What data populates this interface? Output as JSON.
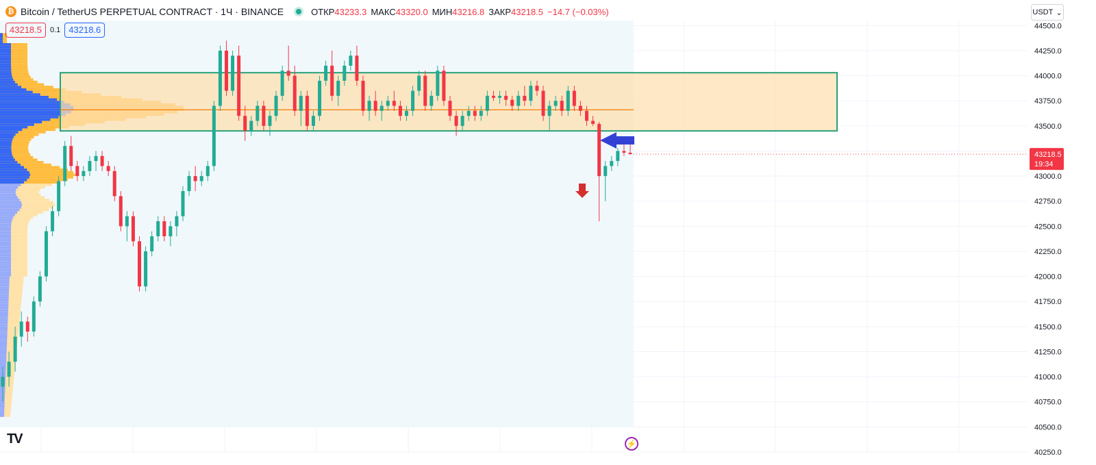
{
  "header": {
    "coin_icon": "bitcoin-icon",
    "title": "Bitcoin / TetherUS PERPETUAL CONTRACT · 1Ч · BINANCE",
    "ohlc": [
      {
        "key": "ОТКР",
        "value": "43233.3"
      },
      {
        "key": "МАКС",
        "value": "43320.0"
      },
      {
        "key": "МИН",
        "value": "43216.8"
      },
      {
        "key": "ЗАКР",
        "value": "43218.5"
      }
    ],
    "change": "−14.7 (−0.03%)"
  },
  "prices": {
    "sell": "43218.5",
    "spread": "0.1",
    "buy": "43218.6"
  },
  "currency": {
    "label": "USDT",
    "icon": "chevron-down-icon"
  },
  "price_axis": {
    "ticks": [
      "44500.0",
      "44250.0",
      "44000.0",
      "43750.0",
      "43500.0",
      "43250.0",
      "43000.0",
      "42750.0",
      "42500.0",
      "42250.0",
      "42000.0",
      "41750.0",
      "41500.0",
      "41250.0",
      "41000.0",
      "40750.0",
      "40500.0",
      "40250.0"
    ],
    "last_price": "43218.5",
    "countdown": "19:34"
  },
  "colors": {
    "up": "#22ab94",
    "down": "#f23645",
    "zone_fill": "#ffe0b2",
    "zone_border": "#26a17b",
    "poc": "#f57c00",
    "profile_blue": "#2962ff",
    "profile_orange": "#ffb833"
  },
  "logo": "TV",
  "bolt_icon": "lightning-icon",
  "chart_data": {
    "type": "candlestick",
    "y_range": [
      40250,
      44550
    ],
    "resistance_zone": [
      43450,
      44030
    ],
    "poc_level": 43660,
    "last_price": 43218.5,
    "candles": [
      [
        40900,
        41100,
        40750,
        41000
      ],
      [
        41000,
        41250,
        40900,
        41150
      ],
      [
        41150,
        41500,
        41050,
        41400
      ],
      [
        41400,
        41650,
        41300,
        41550
      ],
      [
        41550,
        41600,
        41350,
        41450
      ],
      [
        41450,
        41800,
        41400,
        41750
      ],
      [
        41750,
        42050,
        41700,
        42000
      ],
      [
        42000,
        42500,
        41950,
        42450
      ],
      [
        42450,
        42700,
        42400,
        42650
      ],
      [
        42650,
        43000,
        42600,
        42950
      ],
      [
        42950,
        43350,
        42900,
        43300
      ],
      [
        43300,
        43400,
        43050,
        43100
      ],
      [
        43100,
        43150,
        42950,
        43000
      ],
      [
        43000,
        43100,
        42950,
        43050
      ],
      [
        43050,
        43200,
        43000,
        43150
      ],
      [
        43150,
        43250,
        43050,
        43200
      ],
      [
        43200,
        43250,
        43050,
        43100
      ],
      [
        43100,
        43150,
        43000,
        43050
      ],
      [
        43050,
        43100,
        42750,
        42800
      ],
      [
        42800,
        42850,
        42450,
        42500
      ],
      [
        42500,
        42650,
        42350,
        42600
      ],
      [
        42600,
        42650,
        42300,
        42350
      ],
      [
        42350,
        42400,
        41850,
        41900
      ],
      [
        41900,
        42300,
        41850,
        42250
      ],
      [
        42250,
        42450,
        42200,
        42400
      ],
      [
        42400,
        42600,
        42350,
        42550
      ],
      [
        42550,
        42600,
        42350,
        42400
      ],
      [
        42400,
        42550,
        42300,
        42500
      ],
      [
        42500,
        42650,
        42400,
        42600
      ],
      [
        42600,
        42900,
        42550,
        42850
      ],
      [
        42850,
        43050,
        42800,
        43000
      ],
      [
        43000,
        43100,
        42850,
        42950
      ],
      [
        42950,
        43050,
        42900,
        43000
      ],
      [
        43000,
        43150,
        42950,
        43100
      ],
      [
        43100,
        43750,
        43050,
        43700
      ],
      [
        43700,
        44300,
        43650,
        44250
      ],
      [
        44250,
        44350,
        43800,
        43850
      ],
      [
        43850,
        44250,
        43800,
        44200
      ],
      [
        44200,
        44300,
        43550,
        43600
      ],
      [
        43600,
        43700,
        43350,
        43450
      ],
      [
        43450,
        43600,
        43400,
        43550
      ],
      [
        43550,
        43750,
        43500,
        43700
      ],
      [
        43700,
        43750,
        43450,
        43500
      ],
      [
        43500,
        43650,
        43400,
        43600
      ],
      [
        43600,
        43850,
        43550,
        43800
      ],
      [
        43800,
        44100,
        43750,
        44050
      ],
      [
        44050,
        44300,
        43950,
        44000
      ],
      [
        44000,
        44100,
        43600,
        43650
      ],
      [
        43650,
        43850,
        43500,
        43800
      ],
      [
        43800,
        43850,
        43450,
        43500
      ],
      [
        43500,
        43650,
        43450,
        43600
      ],
      [
        43600,
        44000,
        43550,
        43950
      ],
      [
        43950,
        44150,
        43900,
        44100
      ],
      [
        44100,
        44250,
        43750,
        43800
      ],
      [
        43800,
        44000,
        43700,
        43950
      ],
      [
        43950,
        44150,
        43900,
        44100
      ],
      [
        44100,
        44250,
        44050,
        44200
      ],
      [
        44200,
        44300,
        43900,
        43950
      ],
      [
        43950,
        44000,
        43600,
        43650
      ],
      [
        43650,
        43800,
        43550,
        43750
      ],
      [
        43750,
        43850,
        43600,
        43650
      ],
      [
        43650,
        43750,
        43550,
        43700
      ],
      [
        43700,
        43800,
        43650,
        43750
      ],
      [
        43750,
        43850,
        43650,
        43700
      ],
      [
        43700,
        43750,
        43550,
        43600
      ],
      [
        43600,
        43700,
        43550,
        43650
      ],
      [
        43650,
        43900,
        43600,
        43850
      ],
      [
        43850,
        44050,
        43800,
        44000
      ],
      [
        44000,
        44050,
        43650,
        43700
      ],
      [
        43700,
        43850,
        43650,
        43800
      ],
      [
        43800,
        44100,
        43750,
        44050
      ],
      [
        44050,
        44100,
        43700,
        43750
      ],
      [
        43750,
        43800,
        43550,
        43600
      ],
      [
        43600,
        43650,
        43400,
        43500
      ],
      [
        43500,
        43650,
        43450,
        43600
      ],
      [
        43600,
        43700,
        43550,
        43650
      ],
      [
        43650,
        43700,
        43550,
        43600
      ],
      [
        43600,
        43700,
        43550,
        43650
      ],
      [
        43650,
        43850,
        43600,
        43800
      ],
      [
        43800,
        43850,
        43750,
        43780
      ],
      [
        43780,
        43850,
        43720,
        43800
      ],
      [
        43800,
        43850,
        43700,
        43760
      ],
      [
        43760,
        43800,
        43650,
        43700
      ],
      [
        43700,
        43850,
        43650,
        43800
      ],
      [
        43800,
        43900,
        43700,
        43750
      ],
      [
        43750,
        43950,
        43700,
        43900
      ],
      [
        43900,
        43950,
        43800,
        43850
      ],
      [
        43850,
        43900,
        43550,
        43600
      ],
      [
        43600,
        43750,
        43450,
        43700
      ],
      [
        43700,
        43800,
        43650,
        43750
      ],
      [
        43750,
        43800,
        43600,
        43650
      ],
      [
        43650,
        43900,
        43600,
        43850
      ],
      [
        43850,
        43900,
        43650,
        43700
      ],
      [
        43700,
        43750,
        43600,
        43650
      ],
      [
        43650,
        43700,
        43500,
        43550
      ],
      [
        43550,
        43600,
        43500,
        43520
      ],
      [
        43520,
        43540,
        42550,
        43000
      ],
      [
        43000,
        43150,
        42750,
        43100
      ],
      [
        43100,
        43200,
        43050,
        43150
      ],
      [
        43150,
        43280,
        43100,
        43250
      ],
      [
        43250,
        43330,
        43200,
        43233
      ],
      [
        43233,
        43320,
        43216,
        43218
      ]
    ]
  }
}
